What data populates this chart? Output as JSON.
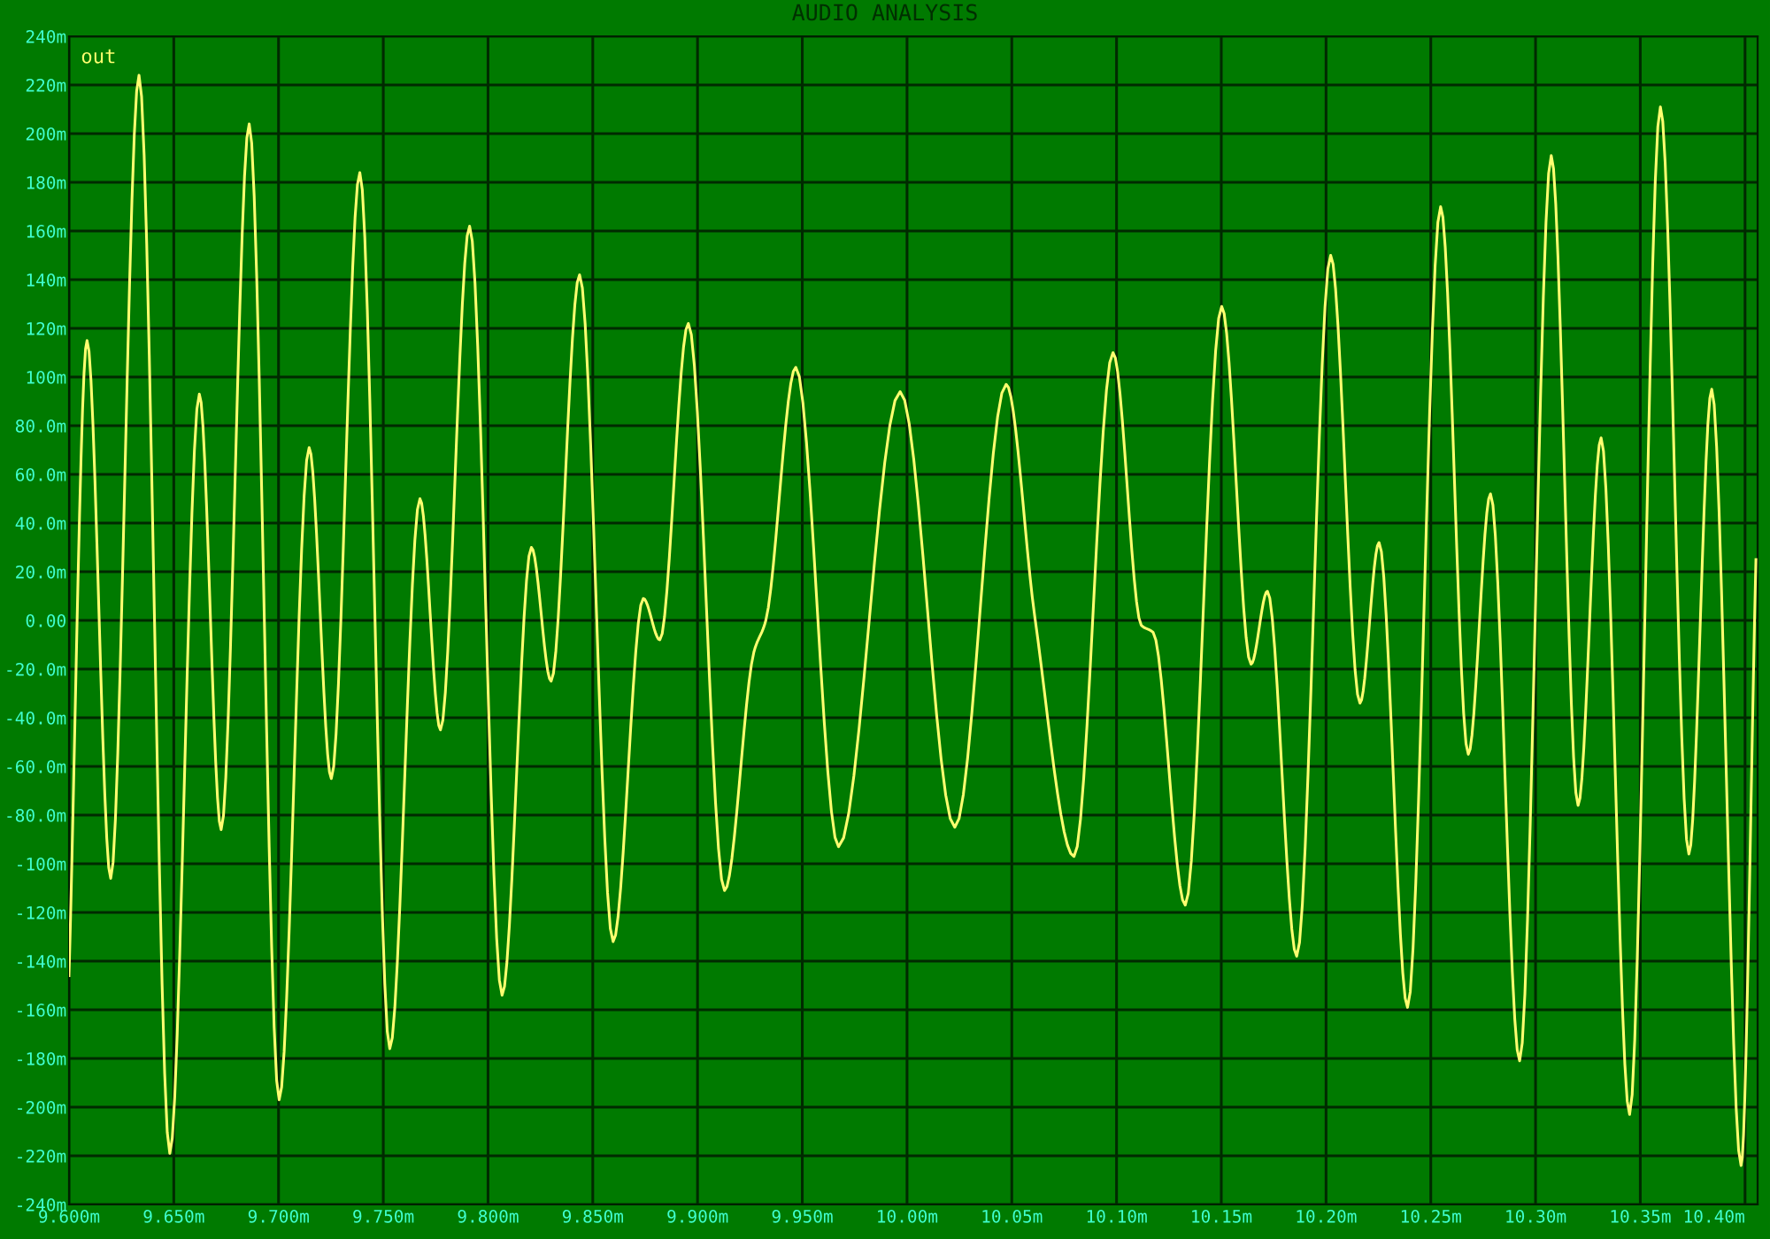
{
  "chart_data": {
    "type": "line",
    "title": "AUDIO ANALYSIS",
    "x": [
      9.6,
      9.6086,
      9.6199,
      9.6334,
      9.6481,
      9.6622,
      9.6726,
      9.686,
      9.7003,
      9.7146,
      9.7252,
      9.7388,
      9.7531,
      9.7675,
      9.7773,
      9.7912,
      9.8067,
      9.8207,
      9.8301,
      9.8437,
      9.8597,
      9.8741,
      9.882,
      9.8956,
      9.9129,
      9.9269,
      9.9326,
      9.9469,
      9.9673,
      9.9967,
      10.0228,
      10.0473,
      10.0609,
      10.0797,
      10.0983,
      10.1118,
      10.1175,
      10.1328,
      10.1502,
      10.1642,
      10.172,
      10.186,
      10.2022,
      10.2162,
      10.2253,
      10.2389,
      10.2547,
      10.2679,
      10.2785,
      10.2924,
      10.3075,
      10.3203,
      10.3313,
      10.3449,
      10.3596,
      10.3732,
      10.3841,
      10.3981,
      10.4052
    ],
    "series": [
      {
        "name": "out",
        "color": "#ffff70",
        "values": [
          -146,
          115,
          -106,
          224,
          -219,
          93,
          -86,
          204,
          -197,
          71,
          -65,
          184,
          -176,
          50,
          -45,
          162,
          -154,
          30,
          -25,
          142,
          -132,
          9,
          -8,
          122,
          -111,
          -13,
          0,
          104,
          -93,
          94,
          -85,
          97,
          2,
          -97,
          110,
          -2,
          -5,
          -117,
          129,
          -18,
          12,
          -138,
          150,
          -34,
          32,
          -159,
          170,
          -55,
          52,
          -181,
          191,
          -76,
          75,
          -203,
          211,
          -96,
          95,
          -224,
          25
        ]
      }
    ],
    "xlim": [
      9.6,
      10.406
    ],
    "xticks": [
      {
        "value": 9.6,
        "label": "9.600m"
      },
      {
        "value": 9.65,
        "label": "9.650m"
      },
      {
        "value": 9.7,
        "label": "9.700m"
      },
      {
        "value": 9.75,
        "label": "9.750m"
      },
      {
        "value": 9.8,
        "label": "9.800m"
      },
      {
        "value": 9.85,
        "label": "9.850m"
      },
      {
        "value": 9.9,
        "label": "9.900m"
      },
      {
        "value": 9.95,
        "label": "9.950m"
      },
      {
        "value": 10.0,
        "label": "10.00m"
      },
      {
        "value": 10.05,
        "label": "10.05m"
      },
      {
        "value": 10.1,
        "label": "10.10m"
      },
      {
        "value": 10.15,
        "label": "10.15m"
      },
      {
        "value": 10.2,
        "label": "10.20m"
      },
      {
        "value": 10.25,
        "label": "10.25m"
      },
      {
        "value": 10.3,
        "label": "10.30m"
      },
      {
        "value": 10.35,
        "label": "10.35m"
      },
      {
        "value": 10.4,
        "label": "10.40m"
      }
    ],
    "ylim": [
      -240,
      240
    ],
    "yticks": [
      {
        "value": 240,
        "label": "240m"
      },
      {
        "value": 220,
        "label": "220m"
      },
      {
        "value": 200,
        "label": "200m"
      },
      {
        "value": 180,
        "label": "180m"
      },
      {
        "value": 160,
        "label": "160m"
      },
      {
        "value": 140,
        "label": "140m"
      },
      {
        "value": 120,
        "label": "120m"
      },
      {
        "value": 100,
        "label": "100m"
      },
      {
        "value": 80,
        "label": "80.0m"
      },
      {
        "value": 60,
        "label": "60.0m"
      },
      {
        "value": 40,
        "label": "40.0m"
      },
      {
        "value": 20,
        "label": "20.0m"
      },
      {
        "value": 0,
        "label": "0.00"
      },
      {
        "value": -20,
        "label": "-20.0m"
      },
      {
        "value": -40,
        "label": "-40.0m"
      },
      {
        "value": -60,
        "label": "-60.0m"
      },
      {
        "value": -80,
        "label": "-80.0m"
      },
      {
        "value": -100,
        "label": "-100m"
      },
      {
        "value": -120,
        "label": "-120m"
      },
      {
        "value": -140,
        "label": "-140m"
      },
      {
        "value": -160,
        "label": "-160m"
      },
      {
        "value": -180,
        "label": "-180m"
      },
      {
        "value": -200,
        "label": "-200m"
      },
      {
        "value": -220,
        "label": "-220m"
      },
      {
        "value": -240,
        "label": "-240m"
      }
    ],
    "grid": true,
    "legend": "top left",
    "marker": "none",
    "line_style": "solid"
  }
}
